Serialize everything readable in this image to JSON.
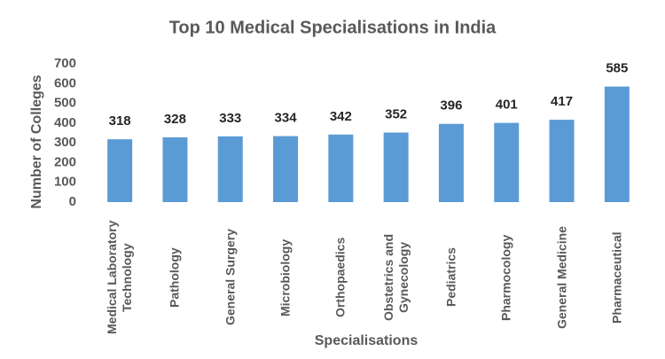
{
  "chart_data": {
    "type": "bar",
    "title": "Top 10 Medical Specialisations in India",
    "x_label": "Specialisations",
    "y_label": "Number of Colleges",
    "categories": [
      "Medical Laboratory Technology",
      "Pathology",
      "General Surgery",
      "Microbiology",
      "Orthopaedics",
      "Obstetrics and Gynecology",
      "Pediatrics",
      "Pharmocology",
      "General Medicine",
      "Pharmaceutical"
    ],
    "values": [
      318,
      328,
      333,
      334,
      342,
      352,
      396,
      401,
      417,
      585
    ],
    "color": "#5b9bd5",
    "ylim": [
      0,
      700
    ],
    "yticks": [
      0,
      100,
      200,
      300,
      400,
      500,
      600,
      700
    ],
    "grid": false
  }
}
